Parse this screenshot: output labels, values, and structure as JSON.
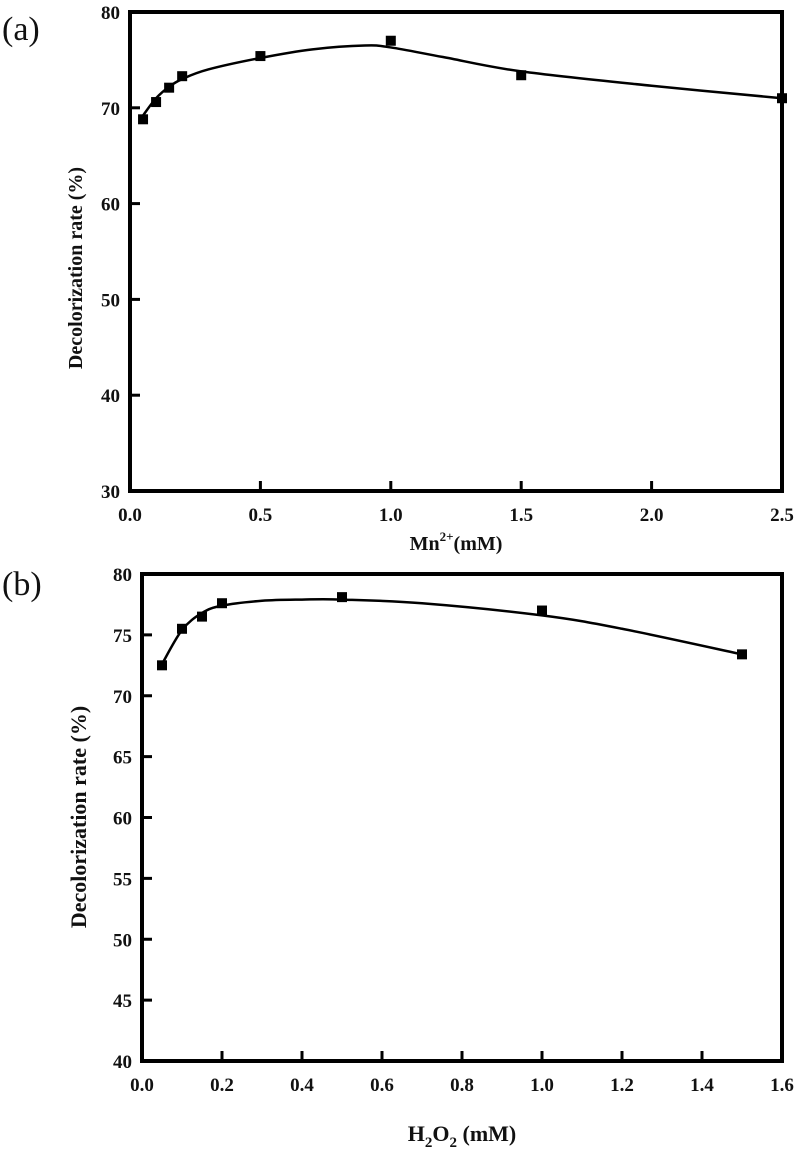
{
  "chart_data": [
    {
      "panel": "(a)",
      "type": "scatter",
      "xlabel_base": "Mn",
      "xlabel_sup": "2+",
      "xlabel_tail": "(mM)",
      "ylabel": "Decolorization rate (%)",
      "xlim": [
        0,
        2.5
      ],
      "ylim": [
        30,
        80
      ],
      "xticks": [
        "0.0",
        "0.5",
        "1.0",
        "1.5",
        "2.0",
        "2.5"
      ],
      "yticks": [
        "30",
        "40",
        "50",
        "60",
        "70",
        "80"
      ],
      "xtick_values": [
        0,
        0.5,
        1.0,
        1.5,
        2.0,
        2.5
      ],
      "ytick_values": [
        30,
        40,
        50,
        60,
        70,
        80
      ],
      "x": [
        0.05,
        0.1,
        0.15,
        0.2,
        0.5,
        1.0,
        1.5,
        2.5
      ],
      "y": [
        68.8,
        70.6,
        72.1,
        73.3,
        75.4,
        77.0,
        73.4,
        71.0
      ],
      "fit_x": [
        0.05,
        0.1,
        0.15,
        0.2,
        0.3,
        0.5,
        0.7,
        0.9,
        1.0,
        1.2,
        1.5,
        2.0,
        2.5
      ],
      "fit_y": [
        69.2,
        71.0,
        72.2,
        73.0,
        74.0,
        75.2,
        76.1,
        76.5,
        76.3,
        75.3,
        73.8,
        72.3,
        71.0
      ]
    },
    {
      "panel": "(b)",
      "type": "scatter",
      "xlabel_base": "H",
      "xlabel_sub1": "2",
      "xlabel_mid": "O",
      "xlabel_sub2": "2",
      "xlabel_tail": " (mM)",
      "ylabel": "Decolorization rate (%)",
      "xlim": [
        0,
        1.6
      ],
      "ylim": [
        40,
        80
      ],
      "xticks": [
        "0.0",
        "0.2",
        "0.4",
        "0.6",
        "0.8",
        "1.0",
        "1.2",
        "1.4",
        "1.6"
      ],
      "yticks": [
        "40",
        "45",
        "50",
        "55",
        "60",
        "65",
        "70",
        "75",
        "80"
      ],
      "xtick_values": [
        0,
        0.2,
        0.4,
        0.6,
        0.8,
        1.0,
        1.2,
        1.4,
        1.6
      ],
      "ytick_values": [
        40,
        45,
        50,
        55,
        60,
        65,
        70,
        75,
        80
      ],
      "x": [
        0.05,
        0.1,
        0.15,
        0.2,
        0.5,
        1.0,
        1.5
      ],
      "y": [
        72.5,
        75.5,
        76.5,
        77.6,
        78.1,
        77.0,
        73.4
      ],
      "fit_x": [
        0.05,
        0.1,
        0.15,
        0.2,
        0.3,
        0.4,
        0.5,
        0.7,
        1.0,
        1.2,
        1.5
      ],
      "fit_y": [
        72.6,
        75.4,
        76.8,
        77.4,
        77.8,
        77.9,
        77.9,
        77.6,
        76.6,
        75.5,
        73.4
      ]
    }
  ]
}
